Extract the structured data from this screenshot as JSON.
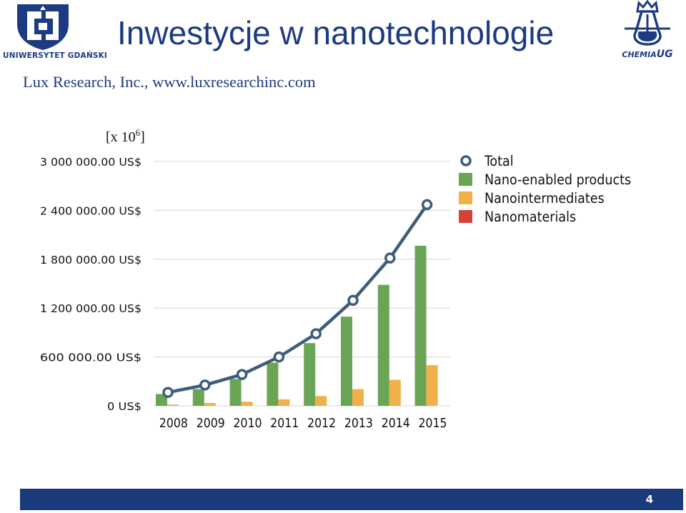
{
  "header": {
    "title": "Inwestycje w nanotechnologie",
    "subtitle": "Lux Research, Inc., www.luxresearchinc.com",
    "logo_left_text": "UNIWERSYTET GDAŃSKI",
    "logo_right_text_a": "CHEMIA",
    "logo_right_text_b": "UG"
  },
  "footer": {
    "page_number": "4"
  },
  "colors": {
    "title": "#1c3a82",
    "footer": "#1b3a7a",
    "total": "#3f5d7a",
    "nano_enabled": "#6aa555",
    "nanointermediates": "#f2b04a",
    "nanomaterials": "#d54038"
  },
  "chart_data": {
    "type": "bar",
    "unit_label": "[x 10",
    "unit_exponent": "6",
    "unit_close": "]",
    "categories": [
      "2008",
      "2009",
      "2010",
      "2011",
      "2012",
      "2013",
      "2014",
      "2015"
    ],
    "y_ticks": [
      0,
      600000,
      1200000,
      1800000,
      2400000,
      3000000
    ],
    "y_tick_labels": [
      "0 US$",
      "600 000.00 US$",
      "1 200 000.00 US$",
      "1 800 000.00 US$",
      "2 400 000.00 US$",
      "3 000 000.00 US$"
    ],
    "ylim": [
      0,
      3000000
    ],
    "grid": true,
    "legend_position": "top-right",
    "series": [
      {
        "name": "Total",
        "kind": "line",
        "color": "#3f5d7a",
        "values": [
          165000,
          255000,
          385000,
          600000,
          885000,
          1295000,
          1815000,
          2470000
        ]
      },
      {
        "name": "Nano-enabled products",
        "kind": "bar",
        "color": "#6aa555",
        "values": [
          145000,
          205000,
          330000,
          530000,
          770000,
          1095000,
          1485000,
          1965000
        ]
      },
      {
        "name": "Nanointermediates",
        "kind": "bar",
        "color": "#f2b04a",
        "values": [
          15000,
          35000,
          50000,
          80000,
          120000,
          205000,
          320000,
          500000
        ]
      },
      {
        "name": "Nanomaterials",
        "kind": "bar",
        "color": "#d54038",
        "values": [
          5000,
          6000,
          7000,
          9000,
          10000,
          12000,
          14000,
          16000
        ]
      }
    ]
  }
}
